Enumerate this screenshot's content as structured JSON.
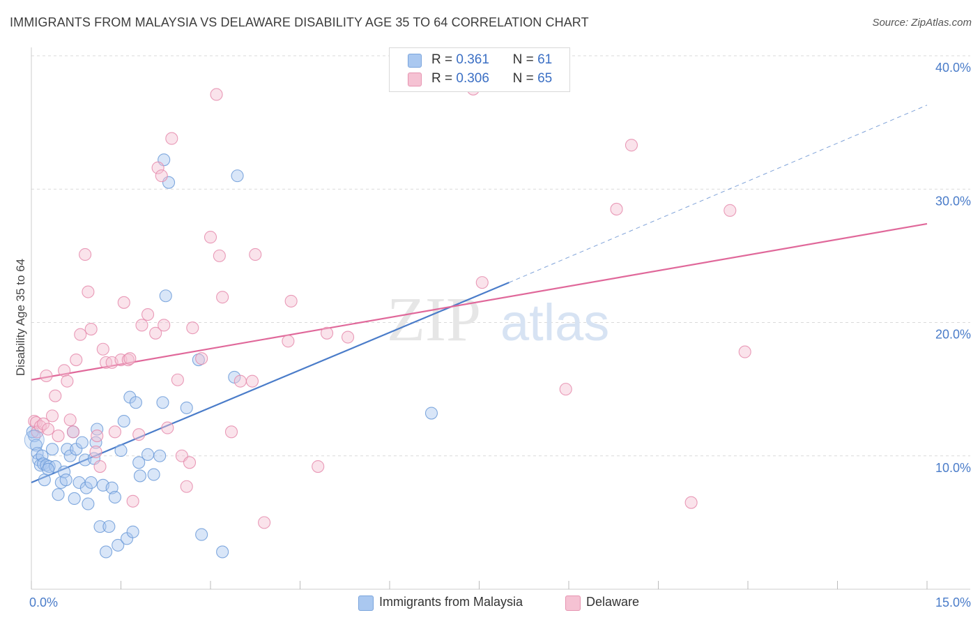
{
  "header": {
    "title": "IMMIGRANTS FROM MALAYSIA VS DELAWARE DISABILITY AGE 35 TO 64 CORRELATION CHART",
    "source": "Source: ZipAtlas.com"
  },
  "watermark": {
    "zip": "ZIP",
    "atlas": "atlas"
  },
  "legend": {
    "blue": {
      "r_label": "R =",
      "r_value": "0.361",
      "n_label": "N =",
      "n_value": "61"
    },
    "pink": {
      "r_label": "R =",
      "r_value": "0.306",
      "n_label": "N =",
      "n_value": "65"
    }
  },
  "colors": {
    "blue": "#4a7cc9",
    "blue_fill": "#aac8f0",
    "pink": "#e0689a",
    "pink_fill": "#f5b8cc",
    "grid": "#d9d9d9",
    "tick_label": "#4a7cc9"
  },
  "chart_data": {
    "type": "scatter",
    "title": "IMMIGRANTS FROM MALAYSIA VS DELAWARE DISABILITY AGE 35 TO 64 CORRELATION CHART",
    "ylabel": "Disability Age 35 to 64",
    "xlim": [
      0,
      15
    ],
    "ylim": [
      0,
      40
    ],
    "x_ticks": [
      0,
      1.5,
      3,
      4.5,
      6,
      7.5,
      9,
      10.5,
      12,
      13.5,
      15
    ],
    "x_tick_labels": {
      "start": "0.0%",
      "end": "15.0%"
    },
    "y_ticks": [
      10,
      20,
      30,
      40
    ],
    "y_tick_labels": [
      "10.0%",
      "20.0%",
      "30.0%",
      "40.0%"
    ],
    "grid": true,
    "legend_position": "top-center",
    "series": [
      {
        "name": "Immigrants from Malaysia",
        "color": "#4a7cc9",
        "r": 0.361,
        "n": 61,
        "trend": {
          "x": [
            0,
            8.0
          ],
          "y": [
            8.0,
            23.0
          ],
          "dashed_to": [
            15.0,
            36.3
          ]
        },
        "points": [
          [
            0.05,
            11.5
          ],
          [
            0.08,
            10.8
          ],
          [
            0.1,
            10.2
          ],
          [
            0.12,
            9.7
          ],
          [
            0.15,
            9.3
          ],
          [
            0.18,
            10.0
          ],
          [
            0.2,
            9.4
          ],
          [
            0.22,
            8.2
          ],
          [
            0.25,
            9.3
          ],
          [
            0.3,
            9.2
          ],
          [
            0.35,
            10.5
          ],
          [
            0.4,
            9.2
          ],
          [
            0.45,
            7.1
          ],
          [
            0.5,
            8.0
          ],
          [
            0.55,
            8.8
          ],
          [
            0.58,
            8.2
          ],
          [
            0.6,
            10.5
          ],
          [
            0.65,
            10.0
          ],
          [
            0.7,
            11.8
          ],
          [
            0.72,
            6.8
          ],
          [
            0.75,
            10.5
          ],
          [
            0.8,
            8.0
          ],
          [
            0.85,
            11.0
          ],
          [
            0.9,
            9.7
          ],
          [
            0.92,
            7.6
          ],
          [
            0.95,
            6.4
          ],
          [
            1.0,
            8.0
          ],
          [
            1.05,
            9.8
          ],
          [
            1.08,
            11.0
          ],
          [
            1.1,
            12.0
          ],
          [
            1.15,
            4.7
          ],
          [
            1.2,
            7.8
          ],
          [
            1.25,
            2.8
          ],
          [
            1.3,
            4.7
          ],
          [
            1.35,
            7.6
          ],
          [
            1.4,
            6.9
          ],
          [
            1.45,
            3.3
          ],
          [
            1.5,
            10.4
          ],
          [
            1.55,
            12.6
          ],
          [
            1.6,
            3.8
          ],
          [
            1.65,
            14.4
          ],
          [
            1.7,
            4.3
          ],
          [
            1.75,
            14.0
          ],
          [
            1.8,
            9.5
          ],
          [
            1.82,
            8.5
          ],
          [
            1.95,
            10.1
          ],
          [
            2.05,
            8.6
          ],
          [
            2.15,
            10.0
          ],
          [
            2.2,
            14.0
          ],
          [
            2.25,
            22.0
          ],
          [
            2.22,
            32.2
          ],
          [
            2.3,
            30.5
          ],
          [
            2.6,
            13.6
          ],
          [
            2.8,
            17.2
          ],
          [
            2.85,
            4.1
          ],
          [
            3.2,
            2.8
          ],
          [
            3.4,
            15.9
          ],
          [
            3.45,
            31.0
          ],
          [
            6.7,
            13.2
          ],
          [
            0.02,
            11.8
          ],
          [
            0.28,
            9.0
          ]
        ]
      },
      {
        "name": "Delaware",
        "color": "#e0689a",
        "r": 0.306,
        "n": 65,
        "trend": {
          "x": [
            0,
            15.0
          ],
          "y": [
            15.7,
            27.4
          ]
        },
        "points": [
          [
            0.05,
            12.6
          ],
          [
            0.08,
            12.5
          ],
          [
            0.1,
            11.8
          ],
          [
            0.15,
            12.2
          ],
          [
            0.2,
            12.4
          ],
          [
            0.25,
            16.0
          ],
          [
            0.28,
            12.0
          ],
          [
            0.35,
            13.0
          ],
          [
            0.4,
            14.5
          ],
          [
            0.45,
            11.5
          ],
          [
            0.55,
            16.4
          ],
          [
            0.6,
            15.6
          ],
          [
            0.65,
            12.7
          ],
          [
            0.7,
            11.8
          ],
          [
            0.75,
            17.2
          ],
          [
            0.82,
            19.1
          ],
          [
            0.9,
            25.1
          ],
          [
            0.95,
            22.3
          ],
          [
            1.0,
            19.5
          ],
          [
            1.08,
            10.3
          ],
          [
            1.1,
            11.5
          ],
          [
            1.15,
            9.2
          ],
          [
            1.2,
            18.0
          ],
          [
            1.25,
            17.0
          ],
          [
            1.35,
            17.0
          ],
          [
            1.4,
            11.8
          ],
          [
            1.5,
            17.2
          ],
          [
            1.55,
            21.5
          ],
          [
            1.62,
            17.2
          ],
          [
            1.65,
            17.3
          ],
          [
            1.7,
            6.6
          ],
          [
            1.8,
            11.6
          ],
          [
            1.85,
            19.8
          ],
          [
            1.95,
            20.6
          ],
          [
            2.08,
            19.2
          ],
          [
            2.12,
            31.6
          ],
          [
            2.18,
            31.0
          ],
          [
            2.22,
            19.8
          ],
          [
            2.28,
            12.1
          ],
          [
            2.35,
            33.8
          ],
          [
            2.45,
            15.7
          ],
          [
            2.52,
            10.0
          ],
          [
            2.6,
            7.7
          ],
          [
            2.65,
            9.5
          ],
          [
            2.7,
            19.6
          ],
          [
            2.85,
            17.3
          ],
          [
            3.0,
            26.4
          ],
          [
            3.1,
            37.1
          ],
          [
            3.15,
            25.0
          ],
          [
            3.2,
            21.9
          ],
          [
            3.35,
            11.8
          ],
          [
            3.5,
            15.6
          ],
          [
            3.7,
            15.6
          ],
          [
            3.75,
            25.1
          ],
          [
            3.9,
            5.0
          ],
          [
            4.3,
            18.6
          ],
          [
            4.35,
            21.6
          ],
          [
            4.8,
            9.2
          ],
          [
            4.95,
            19.2
          ],
          [
            5.3,
            18.9
          ],
          [
            7.55,
            23.0
          ],
          [
            8.95,
            15.0
          ],
          [
            9.8,
            28.5
          ],
          [
            10.05,
            33.3
          ],
          [
            11.05,
            6.5
          ]
        ]
      }
    ],
    "extra_points_pink": [
      [
        11.7,
        28.4
      ],
      [
        11.95,
        17.8
      ],
      [
        7.4,
        37.5
      ]
    ]
  }
}
